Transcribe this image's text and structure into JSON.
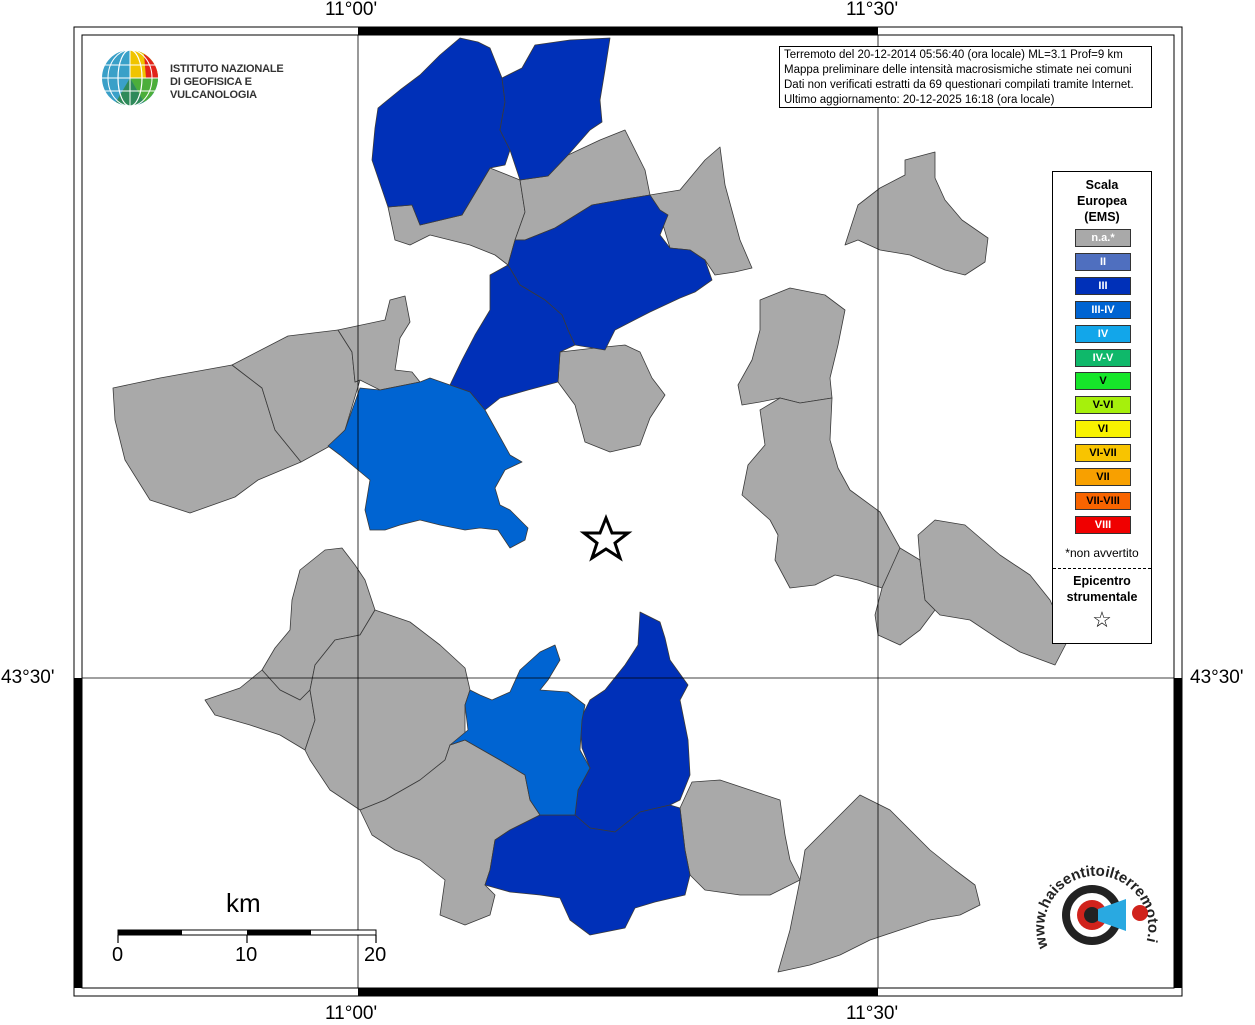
{
  "map": {
    "grid_labels": {
      "top_left": "11°00'",
      "top_right": "11°30'",
      "bottom_left": "11°00'",
      "bottom_right": "11°30'",
      "left": "43°30'",
      "right": "43°30'"
    },
    "colors": {
      "na": "#a9a9a9",
      "II": "#4f6fbf",
      "III": "#0030b8",
      "III-IV": "#0064d2",
      "IV": "#12a6ea"
    }
  },
  "info_box": {
    "line1": "Terremoto del 20-12-2014 05:56:40 (ora locale) ML=3.1 Prof=9 km",
    "line2": "Mappa preliminare delle intensità macrosismiche stimate nei comuni",
    "line3": "Dati non verificati estratti da 69 questionari compilati tramite Internet.",
    "line4": "Ultimo aggiornamento: 20-12-2025 16:18 (ora locale)"
  },
  "logo": {
    "line1": "ISTITUTO NAZIONALE",
    "line2": "DI GEOFISICA E VULCANOLOGIA",
    "icon": "ingv-globe-icon"
  },
  "legend": {
    "title1": "Scala",
    "title2": "Europea",
    "title3": "(EMS)",
    "items": [
      {
        "label": "n.a.*",
        "color": "#a9a9a9",
        "text_color": "#ffffff"
      },
      {
        "label": "II",
        "color": "#4f6fbf",
        "text_color": "#ffffff"
      },
      {
        "label": "III",
        "color": "#0030b8",
        "text_color": "#ffffff"
      },
      {
        "label": "III-IV",
        "color": "#0064d2",
        "text_color": "#ffffff"
      },
      {
        "label": "IV",
        "color": "#12a6ea",
        "text_color": "#ffffff"
      },
      {
        "label": "IV-V",
        "color": "#0fb86a",
        "text_color": "#ffffff"
      },
      {
        "label": "V",
        "color": "#16e62a",
        "text_color": "#000000"
      },
      {
        "label": "V-VI",
        "color": "#a6f00c",
        "text_color": "#000000"
      },
      {
        "label": "VI",
        "color": "#f8f200",
        "text_color": "#000000"
      },
      {
        "label": "VI-VII",
        "color": "#f8c400",
        "text_color": "#000000"
      },
      {
        "label": "VII",
        "color": "#f8a000",
        "text_color": "#000000"
      },
      {
        "label": "VII-VIII",
        "color": "#f86400",
        "text_color": "#000000"
      },
      {
        "label": "VIII",
        "color": "#f00000",
        "text_color": "#ffffff"
      }
    ],
    "note": "*non avvertito",
    "epicentro1": "Epicentro",
    "epicentro2": "strumentale",
    "epicentro_symbol": "☆"
  },
  "scalebar": {
    "title": "km",
    "ticks": [
      "0",
      "10",
      "20"
    ]
  },
  "hsl_logo": {
    "text": "www.haisentitoilterremoto.it",
    "icon": "hsl-target-megaphone-icon"
  }
}
